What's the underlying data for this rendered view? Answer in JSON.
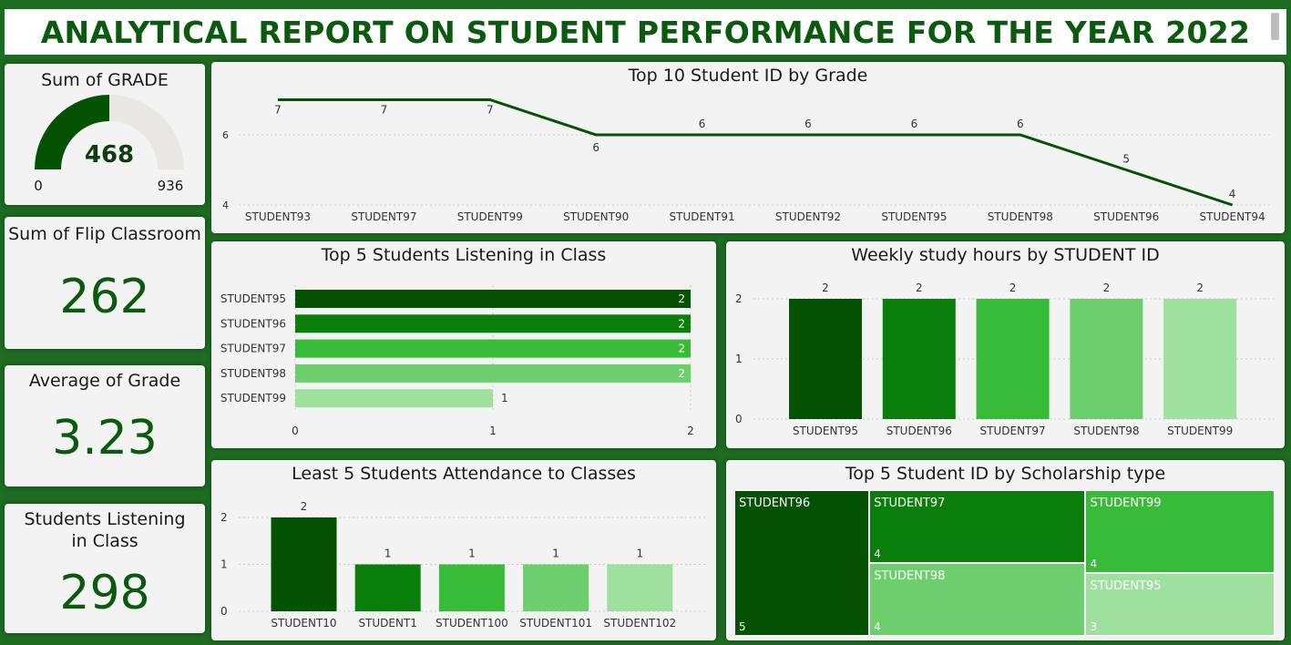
{
  "header": {
    "title": "ANALYTICAL REPORT ON STUDENT PERFORMANCE FOR THE YEAR 2022"
  },
  "colors": {
    "g1": "#045204",
    "g2": "#0a7e0a",
    "g3": "#38bb38",
    "g4": "#6dce6d",
    "g5": "#9ee09e",
    "bg": "#1e6b22"
  },
  "kpis": {
    "sum_grade": {
      "title": "Sum of GRADE",
      "value": "468",
      "min": "0",
      "max": "936",
      "fraction": 0.5
    },
    "flip": {
      "title": "Sum of Flip Classroom",
      "value": "262"
    },
    "avg": {
      "title": "Average of Grade",
      "value": "3.23"
    },
    "listening": {
      "title": "Students Listening in Class",
      "value": "298"
    }
  },
  "chart_data": [
    {
      "id": "line",
      "type": "line",
      "title": "Top 10 Student ID by Grade",
      "categories": [
        "STUDENT93",
        "STUDENT97",
        "STUDENT99",
        "STUDENT90",
        "STUDENT91",
        "STUDENT92",
        "STUDENT95",
        "STUDENT98",
        "STUDENT96",
        "STUDENT94"
      ],
      "values": [
        7,
        7,
        7,
        6,
        6,
        6,
        6,
        6,
        5,
        4
      ],
      "yticks": [
        4,
        6
      ],
      "ylim": [
        4,
        7.5
      ],
      "grid": true
    },
    {
      "id": "hbar",
      "type": "bar",
      "orientation": "horizontal",
      "title": "Top 5 Students Listening in Class",
      "categories": [
        "STUDENT95",
        "STUDENT96",
        "STUDENT97",
        "STUDENT98",
        "STUDENT99"
      ],
      "values": [
        2,
        2,
        2,
        2,
        1
      ],
      "xticks": [
        0,
        1,
        2
      ],
      "xlim": [
        0,
        2
      ]
    },
    {
      "id": "vbar1",
      "type": "bar",
      "title": "Weekly study hours by STUDENT ID",
      "categories": [
        "STUDENT95",
        "STUDENT96",
        "STUDENT97",
        "STUDENT98",
        "STUDENT99"
      ],
      "values": [
        2,
        2,
        2,
        2,
        2
      ],
      "yticks": [
        0,
        1,
        2
      ],
      "ylim": [
        0,
        2
      ]
    },
    {
      "id": "vbar2",
      "type": "bar",
      "title": "Least 5 Students Attendance to Classes",
      "categories": [
        "STUDENT10",
        "STUDENT1",
        "STUDENT100",
        "STUDENT101",
        "STUDENT102"
      ],
      "values": [
        2,
        1,
        1,
        1,
        1
      ],
      "yticks": [
        0,
        1,
        2
      ],
      "ylim": [
        0,
        2
      ]
    },
    {
      "id": "treemap",
      "type": "treemap",
      "title": "Top 5 Student ID by Scholarship type",
      "categories": [
        "STUDENT96",
        "STUDENT97",
        "STUDENT99",
        "STUDENT98",
        "STUDENT95"
      ],
      "values": [
        5,
        4,
        4,
        4,
        3
      ]
    }
  ]
}
